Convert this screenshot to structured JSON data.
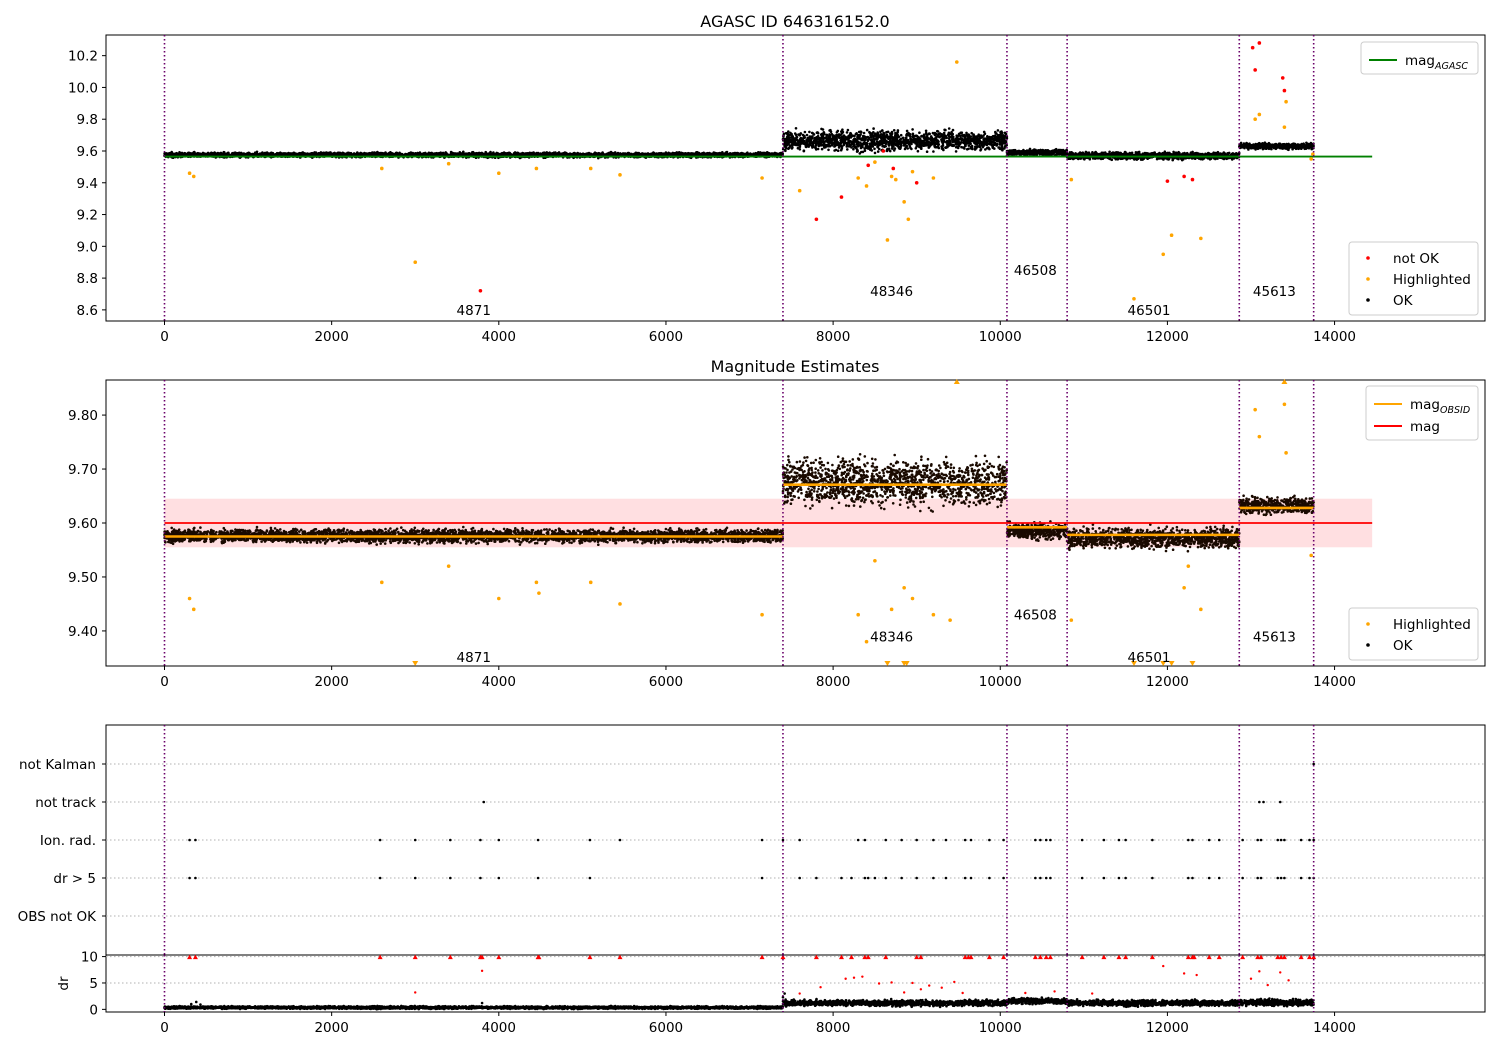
{
  "chart_data": [
    {
      "type": "scatter",
      "title": "AGASC ID 646316152.0",
      "xlim": [
        -700,
        15800
      ],
      "ylim": [
        8.53,
        10.33
      ],
      "xticks": [
        0,
        2000,
        4000,
        6000,
        8000,
        10000,
        12000,
        14000
      ],
      "yticks": [
        8.6,
        8.8,
        9.0,
        9.2,
        9.4,
        9.6,
        9.8,
        10.0,
        10.2
      ],
      "boundaries": [
        0,
        7400,
        10080,
        10800,
        12860,
        13750
      ],
      "obsid_labels": [
        {
          "text": "4871",
          "x": 3700,
          "y": 8.6
        },
        {
          "text": "48346",
          "x": 8700,
          "y": 8.72
        },
        {
          "text": "46508",
          "x": 10420,
          "y": 8.85
        },
        {
          "text": "46501",
          "x": 11780,
          "y": 8.6
        },
        {
          "text": "45613",
          "x": 13280,
          "y": 8.72
        }
      ],
      "segments": [
        {
          "x0": 0,
          "x1": 7400,
          "center": 9.575,
          "spread": 0.012
        },
        {
          "x0": 7400,
          "x1": 10080,
          "center": 9.665,
          "spread": 0.05
        },
        {
          "x0": 10080,
          "x1": 10800,
          "center": 9.59,
          "spread": 0.015
        },
        {
          "x0": 10800,
          "x1": 12860,
          "center": 9.57,
          "spread": 0.018
        },
        {
          "x0": 12860,
          "x1": 13750,
          "center": 9.63,
          "spread": 0.015
        }
      ],
      "reference_line": {
        "name": "mag_AGASC",
        "y": 9.565,
        "x0": 0,
        "x1": 14450,
        "color": "#008000"
      },
      "series": [
        {
          "name": "not OK",
          "color": "#ff0000",
          "x": [
            3780,
            7800,
            8100,
            8420,
            8600,
            8720,
            9000,
            12000,
            12200,
            12300,
            13020,
            13050,
            13100,
            13380,
            13400
          ],
          "y": [
            8.72,
            9.17,
            9.31,
            9.51,
            9.6,
            9.49,
            9.4,
            9.41,
            9.44,
            9.42,
            10.25,
            10.11,
            10.28,
            10.06,
            9.98
          ]
        },
        {
          "name": "Highlighted",
          "color": "#ffa500",
          "x": [
            300,
            350,
            2600,
            3000,
            3400,
            4000,
            4450,
            5100,
            5450,
            7150,
            7600,
            8300,
            8400,
            8500,
            8650,
            8700,
            8750,
            8850,
            8900,
            8950,
            9200,
            9480,
            10850,
            11600,
            11950,
            12050,
            12400,
            13050,
            13100,
            13400,
            13420,
            13720,
            13740
          ],
          "y": [
            9.46,
            9.44,
            9.49,
            8.9,
            9.52,
            9.46,
            9.49,
            9.49,
            9.45,
            9.43,
            9.35,
            9.43,
            9.38,
            9.53,
            9.04,
            9.44,
            9.42,
            9.28,
            9.17,
            9.47,
            9.43,
            10.16,
            9.42,
            8.67,
            8.95,
            9.07,
            9.05,
            9.8,
            9.83,
            9.75,
            9.91,
            9.55,
            9.58
          ]
        }
      ],
      "legend_top": [
        {
          "label": "mag",
          "sub": "AGASC",
          "color": "#008000"
        }
      ],
      "legend_bottom": [
        {
          "label": "not OK",
          "color": "#ff0000"
        },
        {
          "label": "Highlighted",
          "color": "#ffa500"
        },
        {
          "label": "OK",
          "color": "#000000"
        }
      ]
    },
    {
      "type": "scatter",
      "title": "Magnitude Estimates",
      "xlim": [
        -700,
        15800
      ],
      "ylim": [
        9.335,
        9.865
      ],
      "xticks": [
        0,
        2000,
        4000,
        6000,
        8000,
        10000,
        12000,
        14000
      ],
      "yticks": [
        9.4,
        9.5,
        9.6,
        9.7,
        9.8
      ],
      "boundaries": [
        0,
        7400,
        10080,
        10800,
        12860,
        13750
      ],
      "obsid_labels": [
        {
          "text": "4871",
          "x": 3700,
          "y": 9.352
        },
        {
          "text": "48346",
          "x": 8700,
          "y": 9.39
        },
        {
          "text": "46508",
          "x": 10420,
          "y": 9.43
        },
        {
          "text": "46501",
          "x": 11780,
          "y": 9.352
        },
        {
          "text": "45613",
          "x": 13280,
          "y": 9.39
        }
      ],
      "segments": [
        {
          "x0": 0,
          "x1": 7400,
          "center": 9.576,
          "spread": 0.01
        },
        {
          "x0": 7400,
          "x1": 10080,
          "center": 9.675,
          "spread": 0.035
        },
        {
          "x0": 10080,
          "x1": 10800,
          "center": 9.585,
          "spread": 0.012
        },
        {
          "x0": 10800,
          "x1": 12860,
          "center": 9.572,
          "spread": 0.015
        },
        {
          "x0": 12860,
          "x1": 13750,
          "center": 9.632,
          "spread": 0.012
        }
      ],
      "mag_band": {
        "y0": 9.555,
        "y1": 9.645,
        "x0": 0,
        "x1": 14450,
        "color": "#ffd9dc"
      },
      "mag_line": {
        "name": "mag",
        "y": 9.6,
        "x0": 0,
        "x1": 14450,
        "color": "#ff0000"
      },
      "obsid_means": [
        {
          "x0": 0,
          "x1": 7400,
          "y": 9.575
        },
        {
          "x0": 7400,
          "x1": 10080,
          "y": 9.671
        },
        {
          "x0": 10080,
          "x1": 10800,
          "y": 9.592
        },
        {
          "x0": 10800,
          "x1": 12860,
          "y": 9.578
        },
        {
          "x0": 12860,
          "x1": 13750,
          "y": 9.628
        }
      ],
      "series": [
        {
          "name": "Highlighted",
          "color": "#ffa500",
          "x": [
            300,
            350,
            2600,
            3400,
            4000,
            4450,
            4480,
            5100,
            5450,
            7150,
            8300,
            8400,
            8500,
            8700,
            8850,
            8950,
            9200,
            9400,
            10850,
            12200,
            12250,
            12400,
            13050,
            13100,
            13400,
            13420,
            13720
          ],
          "y": [
            9.46,
            9.44,
            9.49,
            9.52,
            9.46,
            9.49,
            9.47,
            9.49,
            9.45,
            9.43,
            9.43,
            9.38,
            9.53,
            9.44,
            9.48,
            9.46,
            9.43,
            9.42,
            9.42,
            9.48,
            9.52,
            9.44,
            9.81,
            9.76,
            9.82,
            9.73,
            9.54
          ]
        }
      ],
      "clipped_markers": {
        "color": "#ffa500",
        "top_x": [
          9480,
          13400
        ],
        "bottom_x": [
          3000,
          8650,
          8850,
          8880,
          11600,
          11950,
          12050,
          12300
        ]
      },
      "legend_top": [
        {
          "label": "mag",
          "sub": "OBSID",
          "color": "#ffa500"
        },
        {
          "label": "mag",
          "sub": "",
          "color": "#ff0000"
        }
      ],
      "legend_bottom": [
        {
          "label": "Highlighted",
          "color": "#ffa500"
        },
        {
          "label": "OK",
          "color": "#000000"
        }
      ]
    },
    {
      "type": "scatter",
      "title": "",
      "xlim": [
        -700,
        15800
      ],
      "categories": [
        "not Kalman",
        "not track",
        "Ion. rad.",
        "dr > 5",
        "OBS not OK"
      ],
      "boundaries": [
        0,
        7400,
        10080,
        10800,
        12860,
        13750
      ],
      "flags": {
        "not Kalman": [
          13750
        ],
        "not track": [
          3820,
          13100,
          13150,
          13350
        ],
        "Ion. rad.": [
          300,
          370,
          2580,
          3000,
          3420,
          3780,
          4000,
          4470,
          5090,
          5450,
          7150,
          7400,
          7600,
          8300,
          8380,
          8630,
          8820,
          9000,
          9200,
          9350,
          9580,
          9650,
          9870,
          10040,
          10420,
          10480,
          10550,
          10600,
          10980,
          11240,
          11420,
          11500,
          11820,
          12250,
          12300,
          12500,
          12620,
          12900,
          13080,
          13120,
          13320,
          13360,
          13400,
          13600,
          13700,
          13750
        ],
        "dr > 5": [
          300,
          370,
          2580,
          3000,
          3420,
          3780,
          4000,
          4470,
          5090,
          7150,
          7600,
          7800,
          8100,
          8220,
          8380,
          8420,
          8500,
          8630,
          8820,
          9000,
          9200,
          9350,
          9580,
          9650,
          9870,
          10040,
          10420,
          10480,
          10550,
          10600,
          10980,
          11240,
          11420,
          11500,
          11820,
          12250,
          12300,
          12500,
          12620,
          12900,
          13080,
          13120,
          13320,
          13360,
          13400,
          13600,
          13700,
          13750
        ],
        "OBS not OK": []
      }
    },
    {
      "type": "scatter",
      "title": "",
      "ylabel": "dr",
      "xlim": [
        -700,
        15800
      ],
      "ylim": [
        -0.5,
        10.3
      ],
      "xticks": [
        0,
        2000,
        4000,
        6000,
        8000,
        10000,
        12000,
        14000
      ],
      "yticks": [
        0,
        5,
        10
      ],
      "boundaries": [
        0,
        7400,
        10080,
        10800,
        12860,
        13750
      ],
      "segments": [
        {
          "x0": 0,
          "x1": 7400,
          "center": 0.35,
          "spread": 0.2
        },
        {
          "x0": 7400,
          "x1": 10080,
          "center": 1.2,
          "spread": 0.45
        },
        {
          "x0": 10080,
          "x1": 10800,
          "center": 1.6,
          "spread": 0.45
        },
        {
          "x0": 10800,
          "x1": 12860,
          "center": 1.2,
          "spread": 0.45
        },
        {
          "x0": 12860,
          "x1": 13750,
          "center": 1.3,
          "spread": 0.5
        }
      ],
      "red_high_x": [
        300,
        370,
        2580,
        3000,
        3420,
        3780,
        3800,
        4000,
        4470,
        4480,
        5090,
        5450,
        7150,
        7400,
        7800,
        8100,
        8220,
        8380,
        8420,
        8630,
        9000,
        9050,
        9580,
        9620,
        9650,
        9870,
        10040,
        10420,
        10480,
        10550,
        10600,
        10980,
        11240,
        11420,
        11500,
        11820,
        12250,
        12300,
        12320,
        12500,
        12620,
        12900,
        13080,
        13120,
        13320,
        13360,
        13400,
        13600,
        13700,
        13750
      ],
      "red_mid": {
        "x": [
          3000,
          3800,
          7600,
          7850,
          8150,
          8250,
          8350,
          8550,
          8700,
          8850,
          8950,
          9050,
          9150,
          9300,
          9450,
          9550,
          10300,
          10650,
          11100,
          11950,
          12200,
          12350,
          13000,
          13100,
          13200,
          13350,
          13450
        ],
        "y": [
          3.2,
          7.3,
          3.0,
          4.2,
          5.8,
          6.0,
          6.2,
          4.9,
          5.1,
          3.2,
          5.0,
          3.8,
          4.5,
          4.1,
          5.2,
          3.1,
          3.1,
          3.4,
          3.0,
          8.2,
          6.8,
          6.5,
          5.8,
          7.2,
          4.6,
          7.0,
          5.5
        ]
      },
      "extra_ok": {
        "x": [
          320,
          380,
          430,
          3800,
          7400,
          7420
        ],
        "y": [
          1.0,
          1.4,
          0.9,
          1.2,
          2.3,
          3.0
        ]
      }
    }
  ]
}
